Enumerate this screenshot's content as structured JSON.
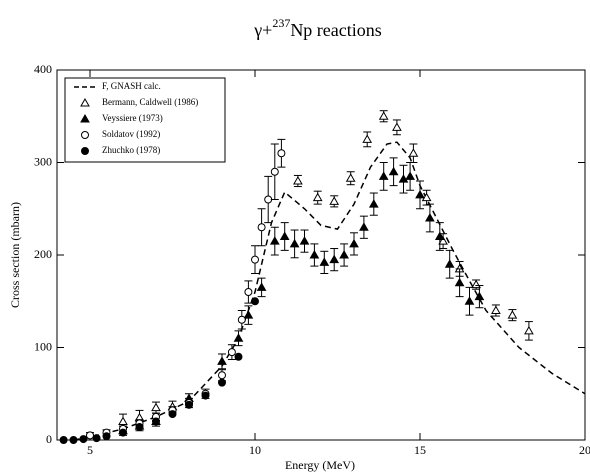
{
  "chart_data": {
    "type": "scatter",
    "title": {
      "prefix": "γ+",
      "superscript": "237",
      "suffix": "Np reactions"
    },
    "x_label": "Energy (MeV)",
    "y_label": "Cross section (mbarn)",
    "xlim": [
      4,
      20
    ],
    "xticks": [
      5,
      10,
      15,
      20
    ],
    "ylim": [
      0,
      400
    ],
    "yticks": [
      0,
      100,
      200,
      300,
      400
    ],
    "legend": "top-left",
    "series": [
      {
        "name": "F, GNASH calc.",
        "style": "dashed-line",
        "color": "#000000",
        "x": [
          4.5,
          5,
          6,
          7,
          8,
          9,
          9.5,
          10,
          10.5,
          10.9,
          11.5,
          12,
          12.5,
          13,
          13.5,
          14,
          14.3,
          14.7,
          15,
          15.5,
          16,
          16.5,
          17,
          17.5,
          18,
          19,
          20
        ],
        "values": [
          0,
          3,
          12,
          25,
          42,
          80,
          110,
          160,
          235,
          268,
          250,
          232,
          228,
          255,
          295,
          320,
          322,
          305,
          275,
          240,
          205,
          172,
          140,
          120,
          100,
          72,
          50
        ]
      },
      {
        "name": "Bermann, Caldwell (1986)",
        "style": "open-triangle",
        "color": "#000000",
        "x": [
          6,
          6.5,
          7,
          7.5,
          11.3,
          11.9,
          12.4,
          12.9,
          13.4,
          13.9,
          14.3,
          14.8,
          15.2,
          15.7,
          16.2,
          16.7,
          17.3,
          17.8,
          18.3
        ],
        "values": [
          20,
          24,
          35,
          36,
          280,
          262,
          258,
          283,
          325,
          350,
          338,
          310,
          262,
          215,
          185,
          168,
          140,
          135,
          118
        ],
        "errors": [
          8,
          8,
          6,
          6,
          6,
          7,
          6,
          7,
          8,
          6,
          8,
          10,
          8,
          8,
          8,
          5,
          6,
          6,
          10
        ]
      },
      {
        "name": "Veyssiere (1973)",
        "style": "filled-triangle",
        "color": "#000000",
        "x": [
          6,
          6.5,
          7,
          8,
          9,
          9.5,
          9.8,
          10.2,
          10.6,
          10.9,
          11.2,
          11.5,
          11.8,
          12.1,
          12.4,
          12.7,
          13,
          13.3,
          13.6,
          13.9,
          14.2,
          14.5,
          14.7,
          15,
          15.3,
          15.6,
          15.9,
          16.2,
          16.5,
          16.8
        ],
        "values": [
          10,
          15,
          20,
          45,
          85,
          110,
          135,
          165,
          215,
          220,
          212,
          215,
          200,
          192,
          195,
          200,
          212,
          230,
          255,
          285,
          290,
          282,
          285,
          265,
          240,
          220,
          190,
          170,
          150,
          155
        ],
        "errors": [
          5,
          5,
          5,
          5,
          8,
          8,
          10,
          10,
          15,
          15,
          15,
          12,
          12,
          12,
          12,
          12,
          12,
          12,
          12,
          15,
          15,
          15,
          15,
          15,
          15,
          15,
          15,
          15,
          15,
          12
        ]
      },
      {
        "name": "Soldatov (1992)",
        "style": "open-circle",
        "color": "#000000",
        "x": [
          5,
          5.5,
          6,
          6.5,
          7,
          7.5,
          8,
          8.5,
          9,
          9.3,
          9.6,
          9.8,
          10,
          10.2,
          10.4,
          10.6,
          10.8
        ],
        "values": [
          5,
          8,
          12,
          18,
          25,
          32,
          40,
          50,
          70,
          95,
          130,
          160,
          195,
          230,
          260,
          290,
          310
        ],
        "errors": [
          3,
          3,
          3,
          4,
          4,
          4,
          5,
          5,
          6,
          8,
          10,
          12,
          15,
          20,
          25,
          30,
          15
        ]
      },
      {
        "name": "Zhuchko (1978)",
        "style": "filled-circle",
        "color": "#000000",
        "x": [
          4.2,
          4.5,
          4.8,
          5.2,
          5.5,
          6,
          6.5,
          7,
          7.5,
          8,
          8.5,
          9,
          9.5,
          10
        ],
        "values": [
          0,
          0,
          1,
          2,
          4,
          8,
          14,
          20,
          28,
          38,
          48,
          62,
          90,
          150
        ]
      }
    ]
  }
}
